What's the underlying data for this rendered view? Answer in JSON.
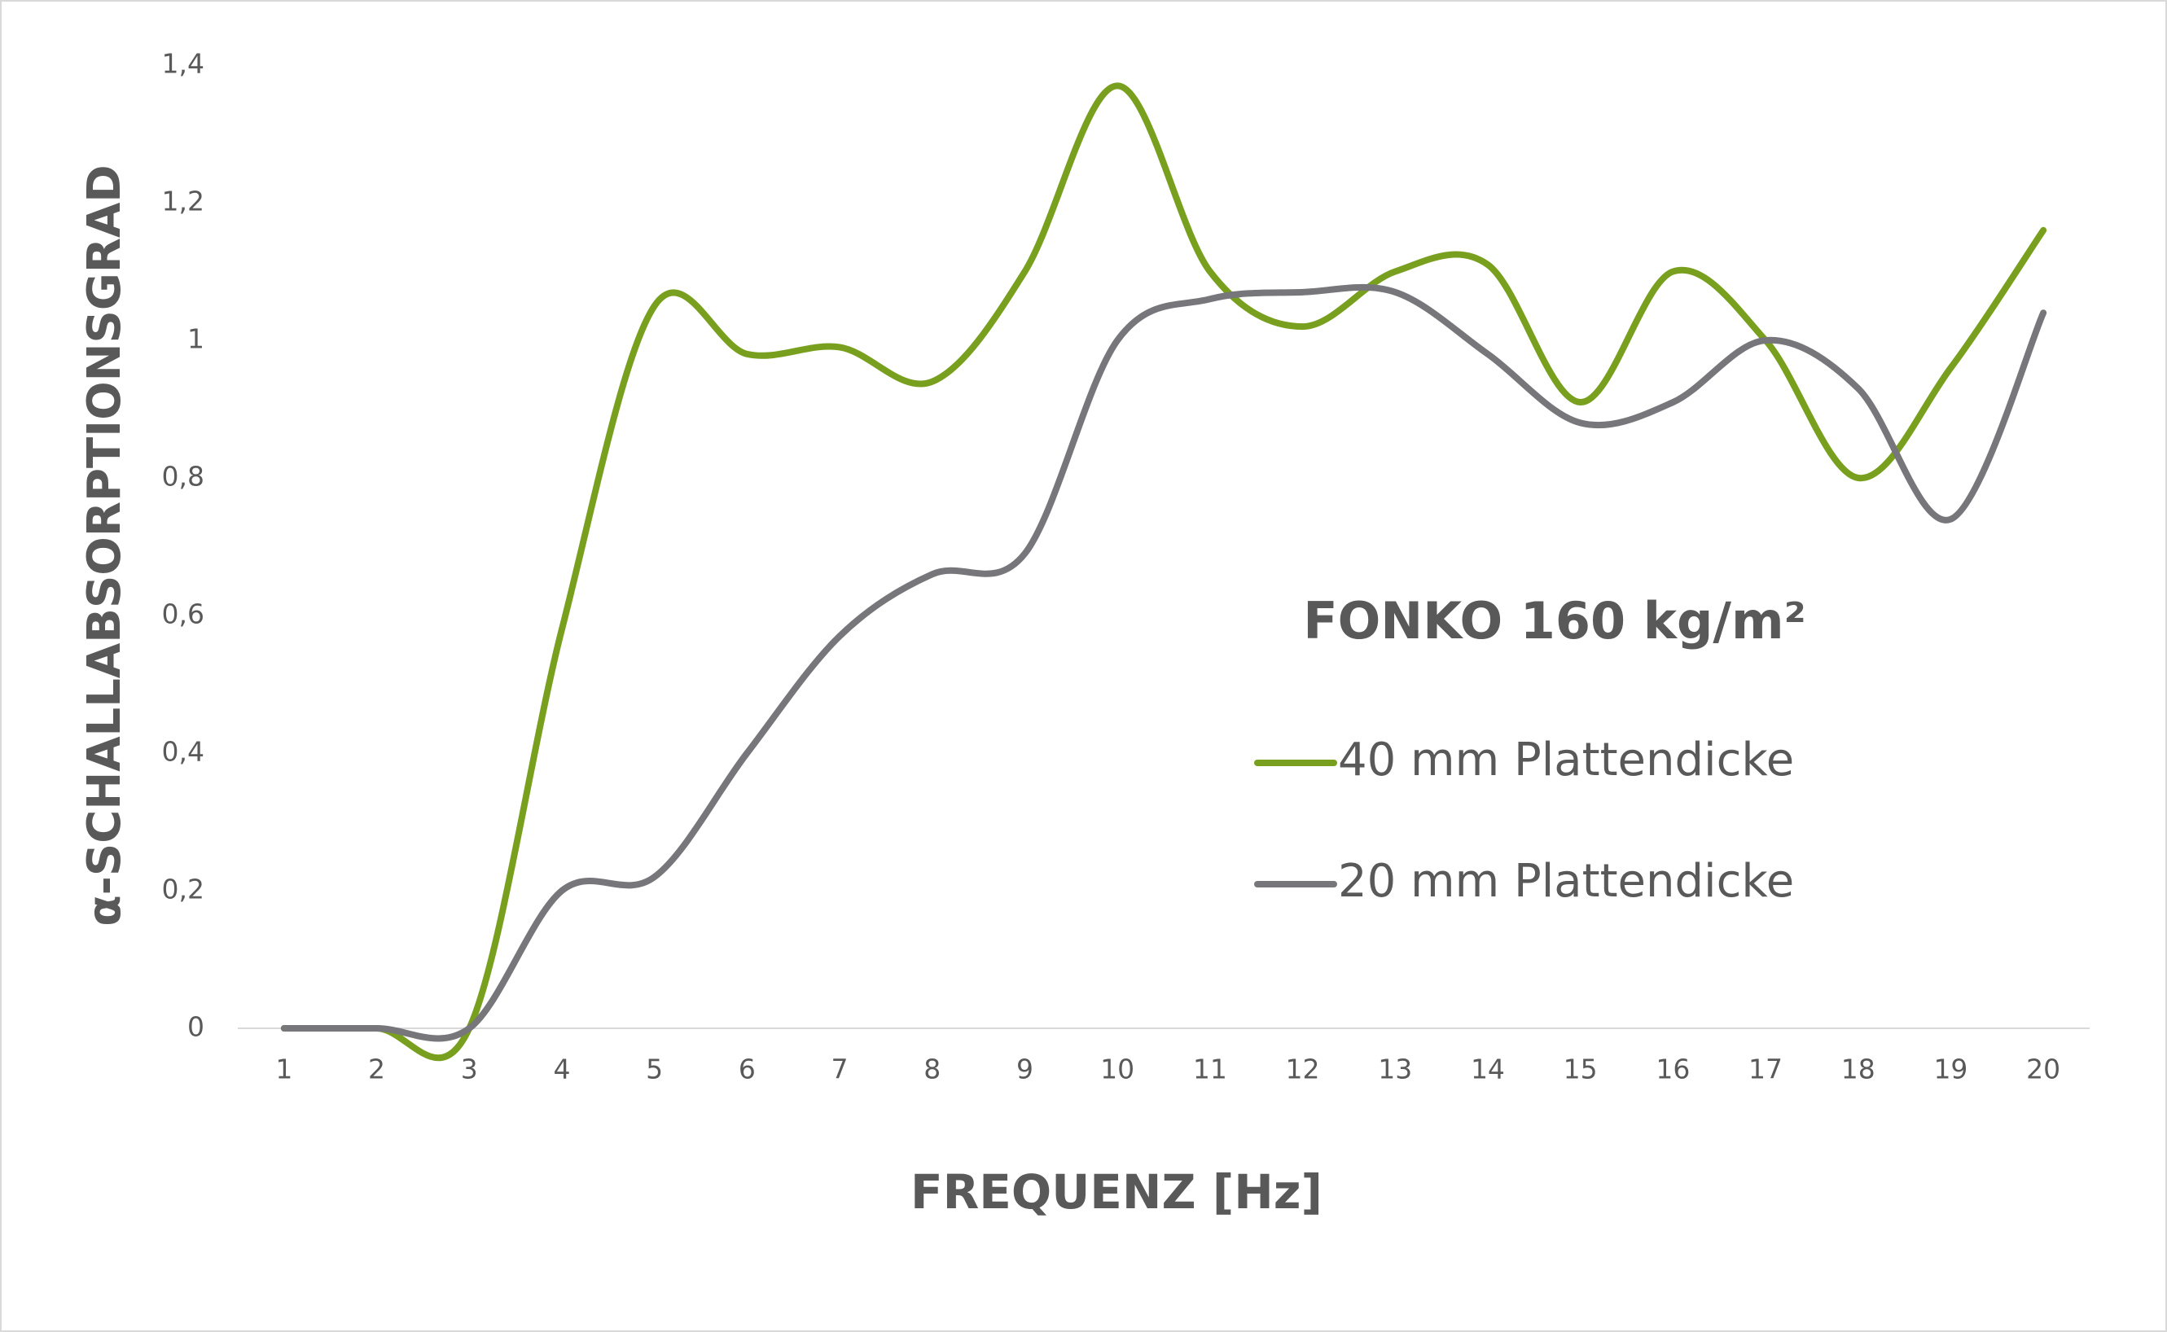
{
  "chart_data": {
    "type": "line",
    "title": "FONKO 160 kg/m²",
    "x_label": "FREQUENZ [Hz]",
    "y_label": "α-SCHALLABSORPTIONSGRAD",
    "categories": [
      "1",
      "2",
      "3",
      "4",
      "5",
      "6",
      "7",
      "8",
      "9",
      "10",
      "11",
      "12",
      "13",
      "14",
      "15",
      "16",
      "17",
      "18",
      "19",
      "20"
    ],
    "series": [
      {
        "name": "40 mm Plattendicke",
        "color": "#78a01e",
        "values": [
          0,
          0,
          0,
          0.58,
          1.05,
          0.98,
          0.99,
          0.94,
          1.1,
          1.37,
          1.1,
          1.02,
          1.1,
          1.11,
          0.91,
          1.1,
          1.0,
          0.8,
          0.96,
          1.16
        ]
      },
      {
        "name": "20 mm Plattendicke",
        "color": "#77767a",
        "values": [
          0,
          0,
          0,
          0.2,
          0.22,
          0.4,
          0.57,
          0.66,
          0.69,
          1.0,
          1.06,
          1.07,
          1.07,
          0.98,
          0.88,
          0.91,
          1.0,
          0.93,
          0.74,
          1.04
        ]
      }
    ],
    "ylim": [
      0,
      1.4
    ],
    "yticks": [
      0,
      {
        "value": 0.2,
        "label": "0,2"
      },
      {
        "value": 0.4,
        "label": "0,4"
      },
      {
        "value": 0.6,
        "label": "0,6"
      },
      {
        "value": 0.8,
        "label": "0,8"
      },
      1,
      {
        "value": 1.2,
        "label": "1,2"
      },
      {
        "value": 1.4,
        "label": "1,4"
      }
    ],
    "smooth": true,
    "grid": false
  }
}
